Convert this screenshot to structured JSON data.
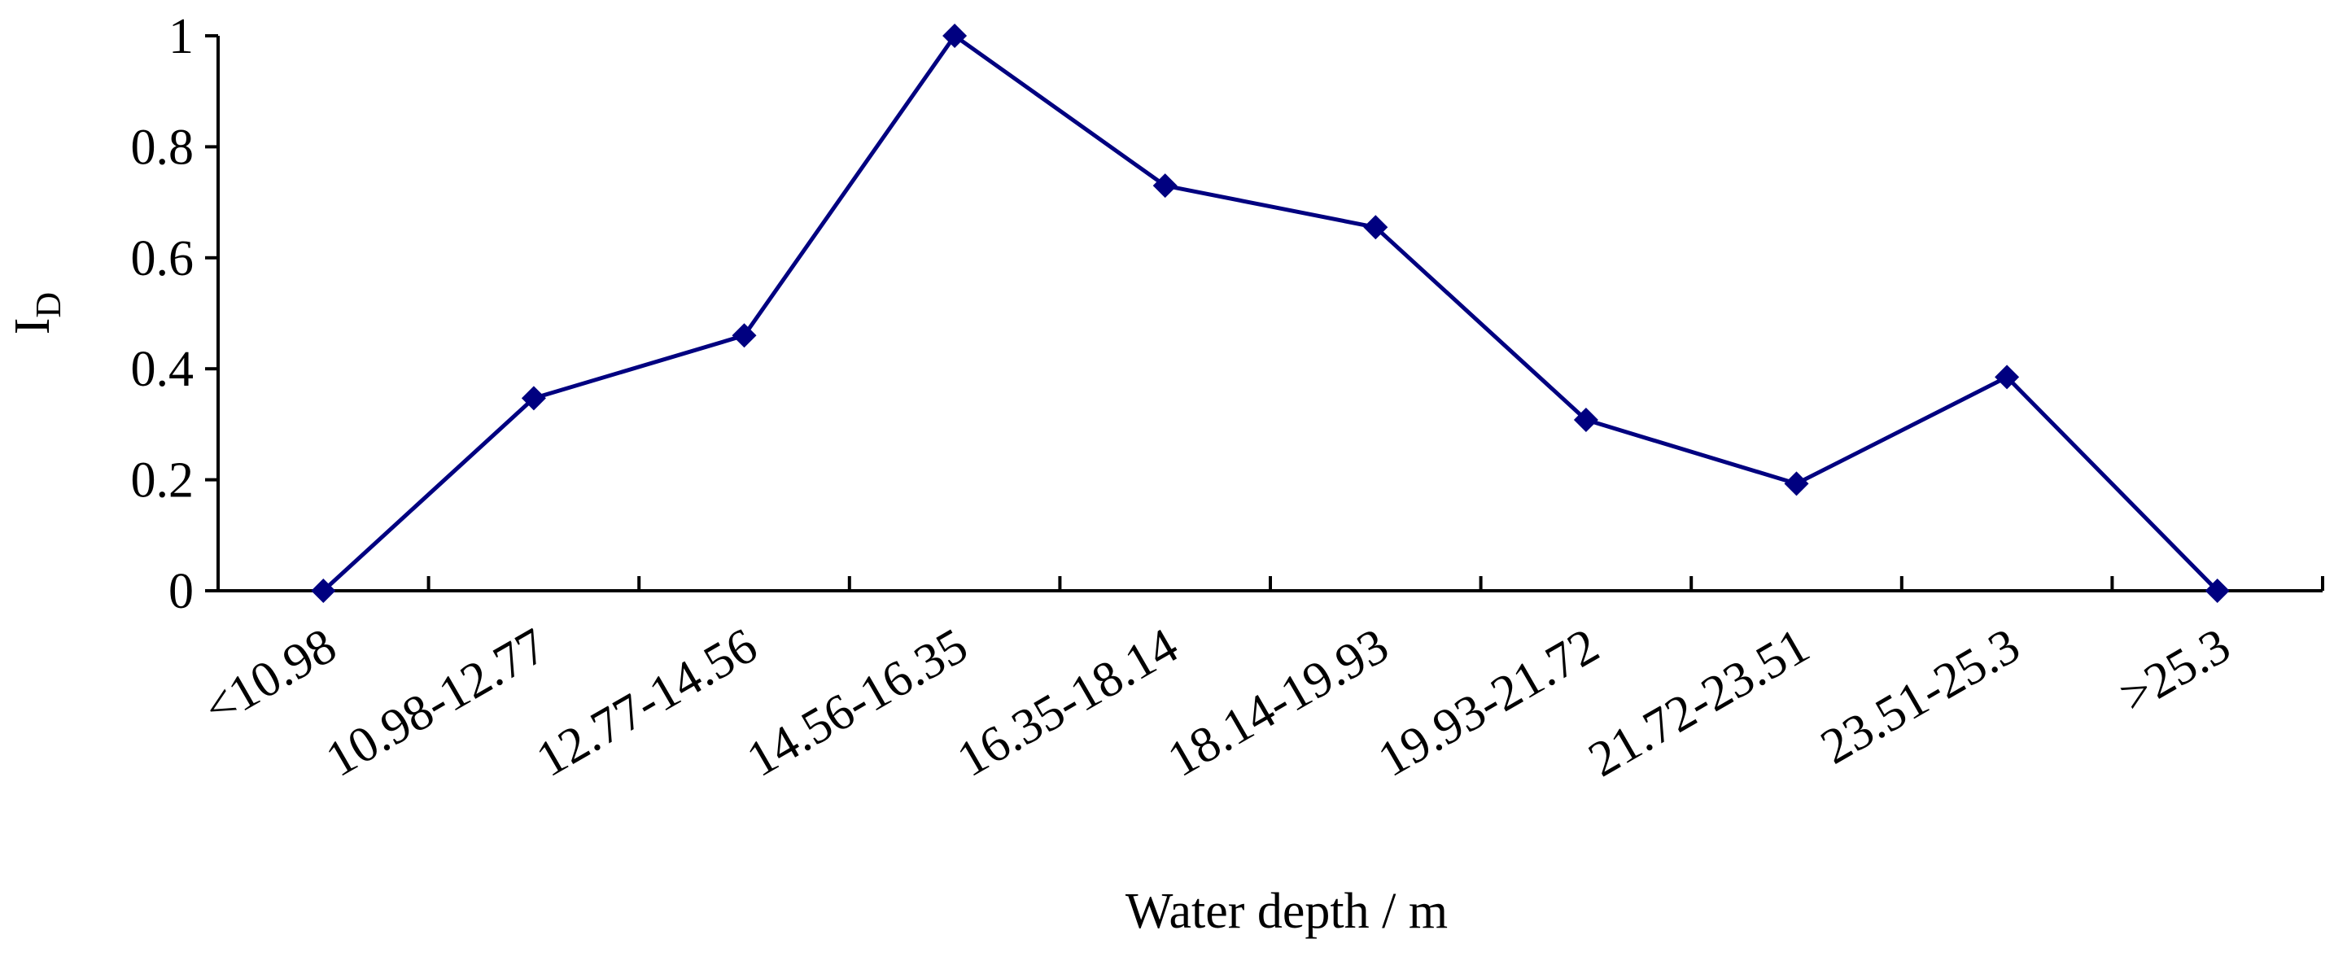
{
  "chart_data": {
    "type": "line",
    "title": "",
    "xlabel": "Water depth / m",
    "ylabel": {
      "main": "I",
      "subscript": "D"
    },
    "categories": [
      "<10.98",
      "10.98-12.77",
      "12.77-14.56",
      "14.56-16.35",
      "16.35-18.14",
      "18.14-19.93",
      "19.93-21.72",
      "21.72-23.51",
      "23.51-25.3",
      ">25.3"
    ],
    "series": [
      {
        "name": "I_D",
        "values": [
          0,
          0.347,
          0.46,
          1.0,
          0.73,
          0.655,
          0.308,
          0.193,
          0.385,
          0
        ]
      }
    ],
    "ylim": [
      0,
      1
    ],
    "yticks": [
      0,
      0.2,
      0.4,
      0.6,
      0.8,
      1
    ],
    "ytick_labels": [
      "0",
      "0.2",
      "0.4",
      "0.6",
      "0.8",
      "1"
    ],
    "grid": false,
    "legend": "none",
    "marker": "diamond",
    "line_color": "#000080"
  }
}
